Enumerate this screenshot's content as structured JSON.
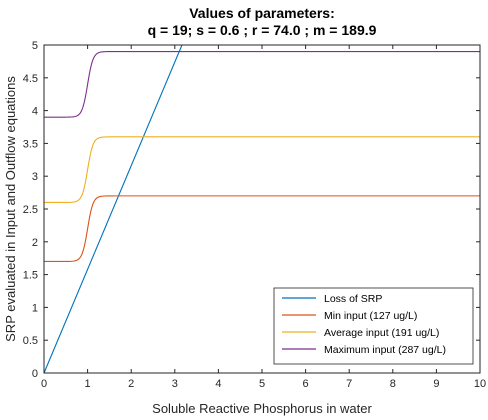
{
  "chart_data": {
    "type": "line",
    "title_line1": "Values of parameters:",
    "title_line2": "q = 19; s = 0.6 ; r = 74.0 ; m = 189.9",
    "xlabel": "Soluble Reactive Phosphorus in water",
    "ylabel": "SRP evaluated in Input and Outflow equations",
    "xlim": [
      0,
      10
    ],
    "ylim": [
      0,
      5
    ],
    "xticks": [
      "0",
      "1",
      "2",
      "3",
      "4",
      "5",
      "6",
      "7",
      "8",
      "9",
      "10"
    ],
    "yticks": [
      "0",
      "0.5",
      "1",
      "1.5",
      "2",
      "2.5",
      "3",
      "3.5",
      "4",
      "4.5",
      "5"
    ],
    "legend_location": "bottom-right",
    "grid": false,
    "series": [
      {
        "name": "Loss of SRP",
        "color": "#0072BD",
        "kind": "linear",
        "slope": 1.58
      },
      {
        "name": "Min input (127 ug/L)",
        "color": "#D95319",
        "kind": "sigmoid",
        "low": 1.7,
        "high": 2.7,
        "center": 1.0,
        "steepness": 16
      },
      {
        "name": "Average input (191 ug/L)",
        "color": "#EDB120",
        "kind": "sigmoid",
        "low": 2.6,
        "high": 3.6,
        "center": 1.0,
        "steepness": 16
      },
      {
        "name": "Maximum input (287 ug/L)",
        "color": "#7E2F8E",
        "kind": "sigmoid",
        "low": 3.9,
        "high": 4.9,
        "center": 1.0,
        "steepness": 16
      }
    ]
  }
}
